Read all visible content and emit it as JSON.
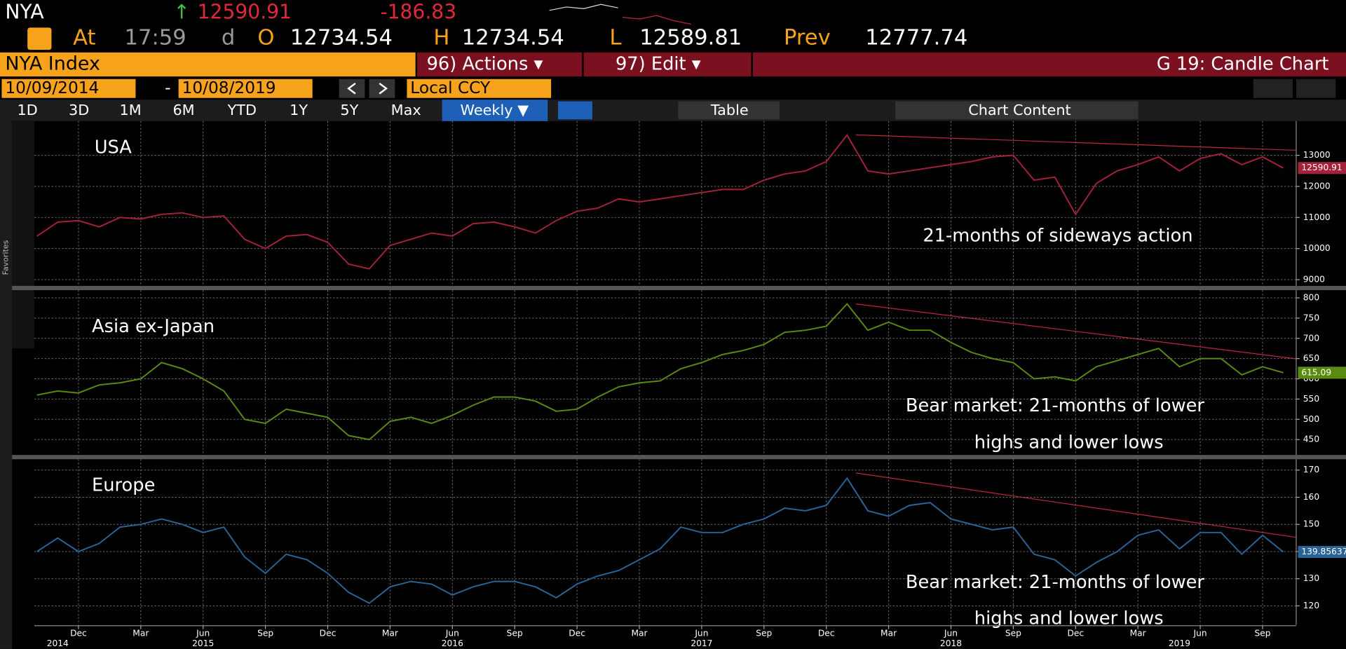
{
  "toolbar": {
    "ticker": "NYA",
    "arrow": "↑",
    "last": "12590.91",
    "change": "-186.83",
    "quote_line": [
      "At",
      "17:59",
      "d",
      "O",
      "12734.54",
      "H",
      "12734.54",
      "L",
      "12589.81",
      "Prev",
      "12777.74"
    ],
    "security": "NYA Index",
    "actions": "96) Actions ▾",
    "edit": "97) Edit ▾",
    "chart_name": "G 19: Candle Chart",
    "start_date": "10/09/2014",
    "dash": "-",
    "end_date": "10/08/2019",
    "currency": "Local CCY",
    "periods": [
      "1D",
      "3D",
      "1M",
      "6M",
      "YTD",
      "1Y",
      "5Y",
      "Max"
    ],
    "frequency": "Weekly ▼",
    "table": "Table",
    "chart_content": "Chart Content",
    "favorites": "Favorites"
  },
  "chart_data": [
    {
      "type": "line",
      "title": "USA",
      "annotations": [
        "21-months of sideways action"
      ],
      "color": "#a3223a",
      "x": [
        "2014-10",
        "2014-11",
        "2014-12",
        "2015-01",
        "2015-02",
        "2015-03",
        "2015-04",
        "2015-05",
        "2015-06",
        "2015-07",
        "2015-08",
        "2015-09",
        "2015-10",
        "2015-11",
        "2015-12",
        "2016-01",
        "2016-02",
        "2016-03",
        "2016-04",
        "2016-05",
        "2016-06",
        "2016-07",
        "2016-08",
        "2016-09",
        "2016-10",
        "2016-11",
        "2016-12",
        "2017-01",
        "2017-02",
        "2017-03",
        "2017-04",
        "2017-05",
        "2017-06",
        "2017-07",
        "2017-08",
        "2017-09",
        "2017-10",
        "2017-11",
        "2017-12",
        "2018-01",
        "2018-02",
        "2018-03",
        "2018-04",
        "2018-05",
        "2018-06",
        "2018-07",
        "2018-08",
        "2018-09",
        "2018-10",
        "2018-11",
        "2018-12",
        "2019-01",
        "2019-02",
        "2019-03",
        "2019-04",
        "2019-05",
        "2019-06",
        "2019-07",
        "2019-08",
        "2019-09",
        "2019-10"
      ],
      "values": [
        10400,
        10850,
        10900,
        10700,
        11000,
        10950,
        11100,
        11150,
        11000,
        11050,
        10300,
        10000,
        10400,
        10450,
        10200,
        9500,
        9350,
        10100,
        10300,
        10500,
        10400,
        10800,
        10850,
        10700,
        10500,
        10900,
        11200,
        11300,
        11600,
        11500,
        11600,
        11700,
        11800,
        11900,
        11900,
        12200,
        12400,
        12500,
        12800,
        13650,
        12500,
        12400,
        12500,
        12600,
        12700,
        12800,
        12950,
        13000,
        12200,
        12300,
        11100,
        12100,
        12500,
        12700,
        12950,
        12500,
        12900,
        13050,
        12700,
        12950,
        12590.91
      ],
      "ylim": [
        8800,
        14100
      ],
      "yticks": [
        9000,
        10000,
        11000,
        12000,
        13000
      ],
      "grid": true
    },
    {
      "type": "line",
      "title": "Asia ex-Japan",
      "annotations": [
        "Bear market: 21-months of lower",
        "highs and lower lows"
      ],
      "color": "#5a8a10",
      "x": [
        "2014-10",
        "2014-11",
        "2014-12",
        "2015-01",
        "2015-02",
        "2015-03",
        "2015-04",
        "2015-05",
        "2015-06",
        "2015-07",
        "2015-08",
        "2015-09",
        "2015-10",
        "2015-11",
        "2015-12",
        "2016-01",
        "2016-02",
        "2016-03",
        "2016-04",
        "2016-05",
        "2016-06",
        "2016-07",
        "2016-08",
        "2016-09",
        "2016-10",
        "2016-11",
        "2016-12",
        "2017-01",
        "2017-02",
        "2017-03",
        "2017-04",
        "2017-05",
        "2017-06",
        "2017-07",
        "2017-08",
        "2017-09",
        "2017-10",
        "2017-11",
        "2017-12",
        "2018-01",
        "2018-02",
        "2018-03",
        "2018-04",
        "2018-05",
        "2018-06",
        "2018-07",
        "2018-08",
        "2018-09",
        "2018-10",
        "2018-11",
        "2018-12",
        "2019-01",
        "2019-02",
        "2019-03",
        "2019-04",
        "2019-05",
        "2019-06",
        "2019-07",
        "2019-08",
        "2019-09",
        "2019-10"
      ],
      "values": [
        560,
        570,
        565,
        585,
        590,
        600,
        640,
        625,
        600,
        570,
        500,
        490,
        525,
        515,
        505,
        460,
        450,
        495,
        505,
        490,
        510,
        535,
        555,
        555,
        545,
        520,
        525,
        555,
        580,
        590,
        595,
        625,
        640,
        660,
        670,
        685,
        715,
        720,
        730,
        785,
        720,
        740,
        720,
        720,
        690,
        665,
        650,
        640,
        600,
        605,
        595,
        630,
        645,
        660,
        675,
        630,
        650,
        650,
        610,
        630,
        615.09
      ],
      "ylim": [
        412,
        819
      ],
      "yticks": [
        450,
        500,
        550,
        600,
        650,
        700,
        750,
        800
      ],
      "grid": true
    },
    {
      "type": "line",
      "title": "Europe",
      "annotations": [
        "Bear market: 21-months of lower",
        "highs and lower lows"
      ],
      "color": "#2a6496",
      "x": [
        "2014-10",
        "2014-11",
        "2014-12",
        "2015-01",
        "2015-02",
        "2015-03",
        "2015-04",
        "2015-05",
        "2015-06",
        "2015-07",
        "2015-08",
        "2015-09",
        "2015-10",
        "2015-11",
        "2015-12",
        "2016-01",
        "2016-02",
        "2016-03",
        "2016-04",
        "2016-05",
        "2016-06",
        "2016-07",
        "2016-08",
        "2016-09",
        "2016-10",
        "2016-11",
        "2016-12",
        "2017-01",
        "2017-02",
        "2017-03",
        "2017-04",
        "2017-05",
        "2017-06",
        "2017-07",
        "2017-08",
        "2017-09",
        "2017-10",
        "2017-11",
        "2017-12",
        "2018-01",
        "2018-02",
        "2018-03",
        "2018-04",
        "2018-05",
        "2018-06",
        "2018-07",
        "2018-08",
        "2018-09",
        "2018-10",
        "2018-11",
        "2018-12",
        "2019-01",
        "2019-02",
        "2019-03",
        "2019-04",
        "2019-05",
        "2019-06",
        "2019-07",
        "2019-08",
        "2019-09",
        "2019-10"
      ],
      "values": [
        140,
        145,
        140,
        143,
        149,
        150,
        152,
        150,
        147,
        149,
        138,
        132,
        139,
        137,
        132,
        125,
        121,
        127,
        129,
        128,
        124,
        127,
        129,
        129,
        127,
        123,
        128,
        131,
        133,
        137,
        141,
        149,
        147,
        147,
        150,
        152,
        156,
        155,
        157,
        167,
        155,
        153,
        157,
        158,
        152,
        150,
        148,
        149,
        139,
        137,
        131,
        136,
        140,
        146,
        148,
        141,
        147,
        147,
        139,
        146,
        139.85637
      ],
      "ylim": [
        113,
        174
      ],
      "yticks": [
        120,
        130,
        140,
        150,
        160,
        170
      ],
      "grid": true,
      "xticks": [
        {
          "value": "2014-12",
          "label": "Dec"
        },
        {
          "value": "2015-03",
          "label": "Mar"
        },
        {
          "value": "2015-06",
          "label": "Jun"
        },
        {
          "value": "2015-09",
          "label": "Sep"
        },
        {
          "value": "2015-12",
          "label": "Dec"
        },
        {
          "value": "2016-03",
          "label": "Mar"
        },
        {
          "value": "2016-06",
          "label": "Jun"
        },
        {
          "value": "2016-09",
          "label": "Sep"
        },
        {
          "value": "2016-12",
          "label": "Dec"
        },
        {
          "value": "2017-03",
          "label": "Mar"
        },
        {
          "value": "2017-06",
          "label": "Jun"
        },
        {
          "value": "2017-09",
          "label": "Sep"
        },
        {
          "value": "2017-12",
          "label": "Dec"
        },
        {
          "value": "2018-03",
          "label": "Mar"
        },
        {
          "value": "2018-06",
          "label": "Jun"
        },
        {
          "value": "2018-09",
          "label": "Sep"
        },
        {
          "value": "2018-12",
          "label": "Dec"
        },
        {
          "value": "2019-03",
          "label": "Mar"
        },
        {
          "value": "2019-06",
          "label": "Jun"
        },
        {
          "value": "2019-09",
          "label": "Sep"
        }
      ],
      "x_group_labels": [
        {
          "value": "2014-11",
          "label": "2014"
        },
        {
          "value": "2015-06",
          "label": "2015"
        },
        {
          "value": "2016-06",
          "label": "2016"
        },
        {
          "value": "2017-06",
          "label": "2017"
        },
        {
          "value": "2018-06",
          "label": "2018"
        },
        {
          "value": "2019-05",
          "label": "2019"
        }
      ]
    }
  ]
}
